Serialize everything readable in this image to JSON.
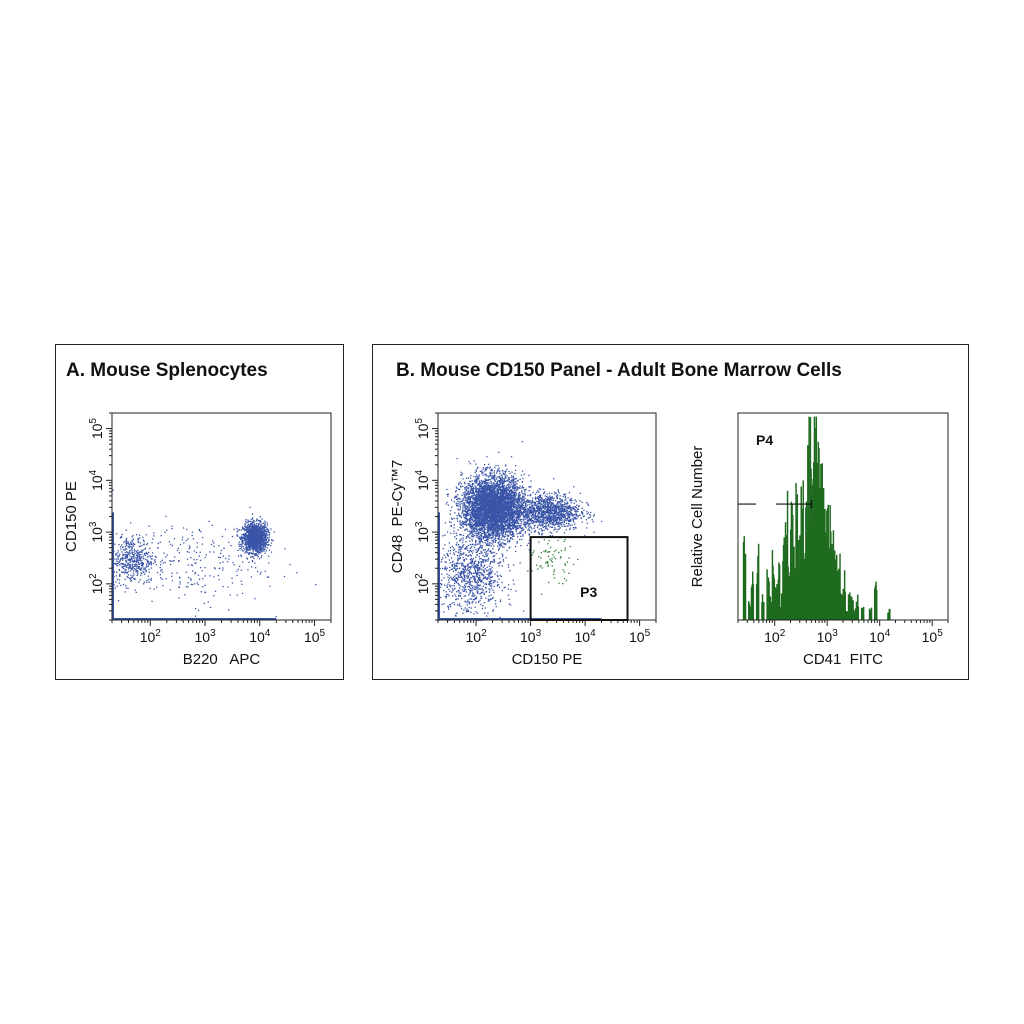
{
  "colors": {
    "dots": "#3a55a8",
    "gated": "#2e7d32",
    "hist_fill": "#6aa86a",
    "hist_line": "#1e6a1e",
    "frame": "#222222"
  },
  "panel_a": {
    "title": "A. Mouse Splenocytes"
  },
  "panel_b": {
    "title": "B. Mouse CD150 Panel - Adult Bone Marrow Cells"
  },
  "chart_data": [
    {
      "type": "scatter",
      "panel": "A",
      "xlabel": "B220   APC",
      "ylabel": "CD150 PE",
      "x_scale": "log",
      "y_scale": "log",
      "xlim": [
        20,
        200000
      ],
      "ylim": [
        20,
        200000
      ],
      "x_ticks": [
        "10^2",
        "10^3",
        "10^4",
        "10^5"
      ],
      "y_ticks": [
        "10^2",
        "10^3",
        "10^4",
        "10^5"
      ],
      "populations": [
        {
          "name": "",
          "center": [
            8000,
            800
          ],
          "spread": [
            0.11,
            0.14
          ],
          "count": 1500
        },
        {
          "name": "",
          "center": [
            45,
            300
          ],
          "spread": [
            0.2,
            0.23
          ],
          "count": 450
        },
        {
          "name": "",
          "center": [
            500,
            250
          ],
          "spread": [
            0.7,
            0.4
          ],
          "count": 260
        }
      ]
    },
    {
      "type": "scatter",
      "panel": "B",
      "xlabel": "CD150 PE",
      "ylabel": "CD48  PE-Cy™7",
      "x_scale": "log",
      "y_scale": "log",
      "xlim": [
        20,
        200000
      ],
      "ylim": [
        20,
        200000
      ],
      "x_ticks": [
        "10^2",
        "10^3",
        "10^4",
        "10^5"
      ],
      "y_ticks": [
        "10^2",
        "10^3",
        "10^4",
        "10^5"
      ],
      "gates": [
        {
          "label": "P3",
          "x": [
            1000,
            60000
          ],
          "y": [
            20,
            800
          ]
        }
      ],
      "populations": [
        {
          "name": "",
          "center": [
            200,
            3000
          ],
          "spread": [
            0.28,
            0.3
          ],
          "count": 4500
        },
        {
          "name": "",
          "center": [
            2000,
            2500
          ],
          "spread": [
            0.3,
            0.18
          ],
          "count": 1200
        },
        {
          "name": "",
          "center": [
            80,
            150
          ],
          "spread": [
            0.3,
            0.4
          ],
          "count": 900
        },
        {
          "name": "",
          "center": [
            2500,
            300
          ],
          "spread": [
            0.22,
            0.2
          ],
          "count": 70
        }
      ]
    },
    {
      "type": "histogram",
      "panel": "B",
      "xlabel": "CD41  FITC",
      "ylabel": "Relative Cell Number",
      "x_scale": "log",
      "xlim": [
        20,
        200000
      ],
      "x_ticks": [
        "10^2",
        "10^3",
        "10^4",
        "10^5"
      ],
      "gates": [
        {
          "label": "P4",
          "x": [
            20,
            500
          ]
        }
      ],
      "bins_log_x": [
        1.4,
        1.45,
        1.5,
        1.55,
        1.6,
        1.65,
        1.7,
        1.75,
        1.8,
        1.85,
        1.9,
        1.95,
        2.0,
        2.05,
        2.1,
        2.15,
        2.2,
        2.25,
        2.3,
        2.35,
        2.4,
        2.45,
        2.5,
        2.55,
        2.6,
        2.65,
        2.7,
        2.75,
        2.8,
        2.85,
        2.9,
        2.95,
        3.0,
        3.05,
        3.1,
        3.15,
        3.2,
        3.25,
        3.3,
        3.35,
        3.4,
        3.45,
        3.5,
        3.55,
        3.6,
        3.65,
        3.7,
        3.75,
        3.8,
        3.85,
        3.9,
        3.95,
        4.0,
        4.05,
        4.1,
        4.15,
        4.2,
        4.25,
        4.3,
        4.35,
        4.4
      ],
      "counts": [
        0.35,
        0,
        0.1,
        0.2,
        0,
        0.3,
        0,
        0.1,
        0,
        0.2,
        0.1,
        0.3,
        0.15,
        0.25,
        0.1,
        0.35,
        0.5,
        0.3,
        0.55,
        0.35,
        0.6,
        0.45,
        0.7,
        0.55,
        0.75,
        0.9,
        0.8,
        1.0,
        0.85,
        0.7,
        0.9,
        0.6,
        0.55,
        0.45,
        0.35,
        0.25,
        0.3,
        0.1,
        0.2,
        0.05,
        0.15,
        0.1,
        0.05,
        0.1,
        0,
        0.05,
        0,
        0,
        0.05,
        0,
        0.2,
        0,
        0,
        0,
        0,
        0.05,
        0,
        0,
        0,
        0,
        0
      ]
    }
  ]
}
